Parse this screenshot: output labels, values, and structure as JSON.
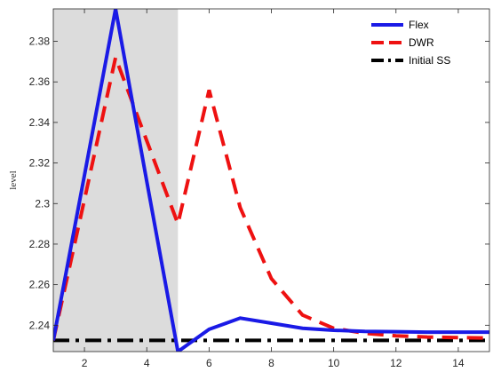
{
  "chart_data": {
    "type": "line",
    "title": "",
    "xlabel": "",
    "ylabel": "level",
    "xlim": [
      1,
      15
    ],
    "ylim": [
      2.227,
      2.396
    ],
    "xticks": [
      2,
      4,
      6,
      8,
      10,
      12,
      14
    ],
    "yticks": [
      2.24,
      2.26,
      2.28,
      2.3,
      2.32,
      2.34,
      2.36,
      2.38
    ],
    "grid": false,
    "legend_position": "top-right",
    "shaded_region": {
      "x_range": [
        1,
        5
      ],
      "color": "#dcdcdc"
    },
    "series": [
      {
        "name": "Flex",
        "color": "#1a1ae6",
        "style": "solid",
        "x": [
          1,
          2,
          3,
          4,
          5,
          6,
          7,
          8,
          9,
          10,
          11,
          12,
          13,
          14,
          15
        ],
        "values": [
          2.2325,
          2.314,
          2.396,
          2.311,
          2.227,
          2.238,
          2.2435,
          2.241,
          2.2385,
          2.2375,
          2.237,
          2.2368,
          2.2366,
          2.2366,
          2.2366
        ]
      },
      {
        "name": "DWR",
        "color": "#ee1111",
        "style": "dashed",
        "x": [
          1,
          2,
          3,
          4,
          5,
          6,
          7,
          8,
          9,
          10,
          11,
          12,
          13,
          14,
          15
        ],
        "values": [
          2.2325,
          2.302,
          2.372,
          2.331,
          2.29,
          2.356,
          2.298,
          2.263,
          2.245,
          2.2385,
          2.236,
          2.2348,
          2.2342,
          2.2339,
          2.2337
        ]
      },
      {
        "name": "Initial SS",
        "color": "#000000",
        "style": "dashdot",
        "x": [
          1,
          15
        ],
        "values": [
          2.2325,
          2.2325
        ]
      }
    ]
  }
}
